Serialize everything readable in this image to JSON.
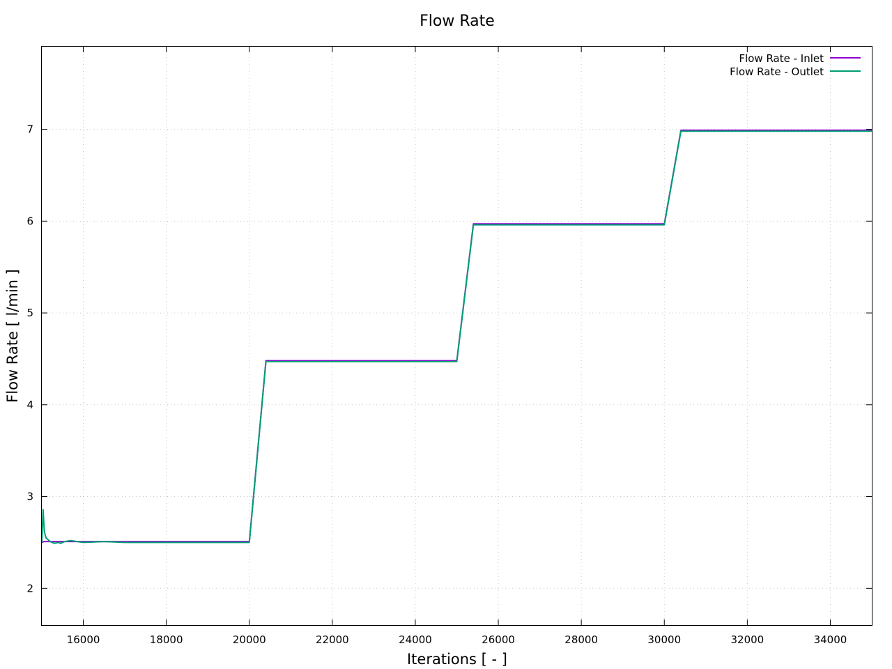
{
  "chart_data": {
    "type": "line",
    "title": "Flow Rate",
    "xlabel": "Iterations [ - ]",
    "ylabel": "Flow Rate [ l/min ]",
    "xlim": [
      15000,
      35000
    ],
    "ylim": [
      1.6,
      7.9
    ],
    "xticks": [
      16000,
      18000,
      20000,
      22000,
      24000,
      26000,
      28000,
      30000,
      32000,
      34000
    ],
    "yticks": [
      2,
      3,
      4,
      5,
      6,
      7
    ],
    "grid": true,
    "legend_position": "top-right",
    "series": [
      {
        "name": "Flow Rate - Inlet",
        "color": "#9400d3",
        "points": [
          [
            15000,
            2.5
          ],
          [
            15050,
            2.51
          ],
          [
            15500,
            2.51
          ],
          [
            16000,
            2.51
          ],
          [
            18000,
            2.51
          ],
          [
            20000,
            2.51
          ],
          [
            20400,
            4.48
          ],
          [
            22000,
            4.48
          ],
          [
            25000,
            4.48
          ],
          [
            25400,
            5.97
          ],
          [
            27000,
            5.97
          ],
          [
            30000,
            5.97
          ],
          [
            30400,
            6.99
          ],
          [
            32000,
            6.99
          ],
          [
            35000,
            6.99
          ]
        ]
      },
      {
        "name": "Flow Rate - Outlet",
        "color": "#009e73",
        "points": [
          [
            15000,
            2.5
          ],
          [
            15030,
            2.86
          ],
          [
            15060,
            2.62
          ],
          [
            15100,
            2.55
          ],
          [
            15200,
            2.51
          ],
          [
            15300,
            2.49
          ],
          [
            15400,
            2.5
          ],
          [
            15450,
            2.49
          ],
          [
            15550,
            2.51
          ],
          [
            15700,
            2.52
          ],
          [
            15850,
            2.51
          ],
          [
            16000,
            2.5
          ],
          [
            16500,
            2.51
          ],
          [
            17000,
            2.5
          ],
          [
            18000,
            2.5
          ],
          [
            20000,
            2.5
          ],
          [
            20400,
            4.47
          ],
          [
            21000,
            4.47
          ],
          [
            23000,
            4.47
          ],
          [
            25000,
            4.47
          ],
          [
            25400,
            5.96
          ],
          [
            27000,
            5.96
          ],
          [
            30000,
            5.96
          ],
          [
            30400,
            6.98
          ],
          [
            32000,
            6.98
          ],
          [
            35000,
            6.98
          ]
        ]
      }
    ]
  }
}
